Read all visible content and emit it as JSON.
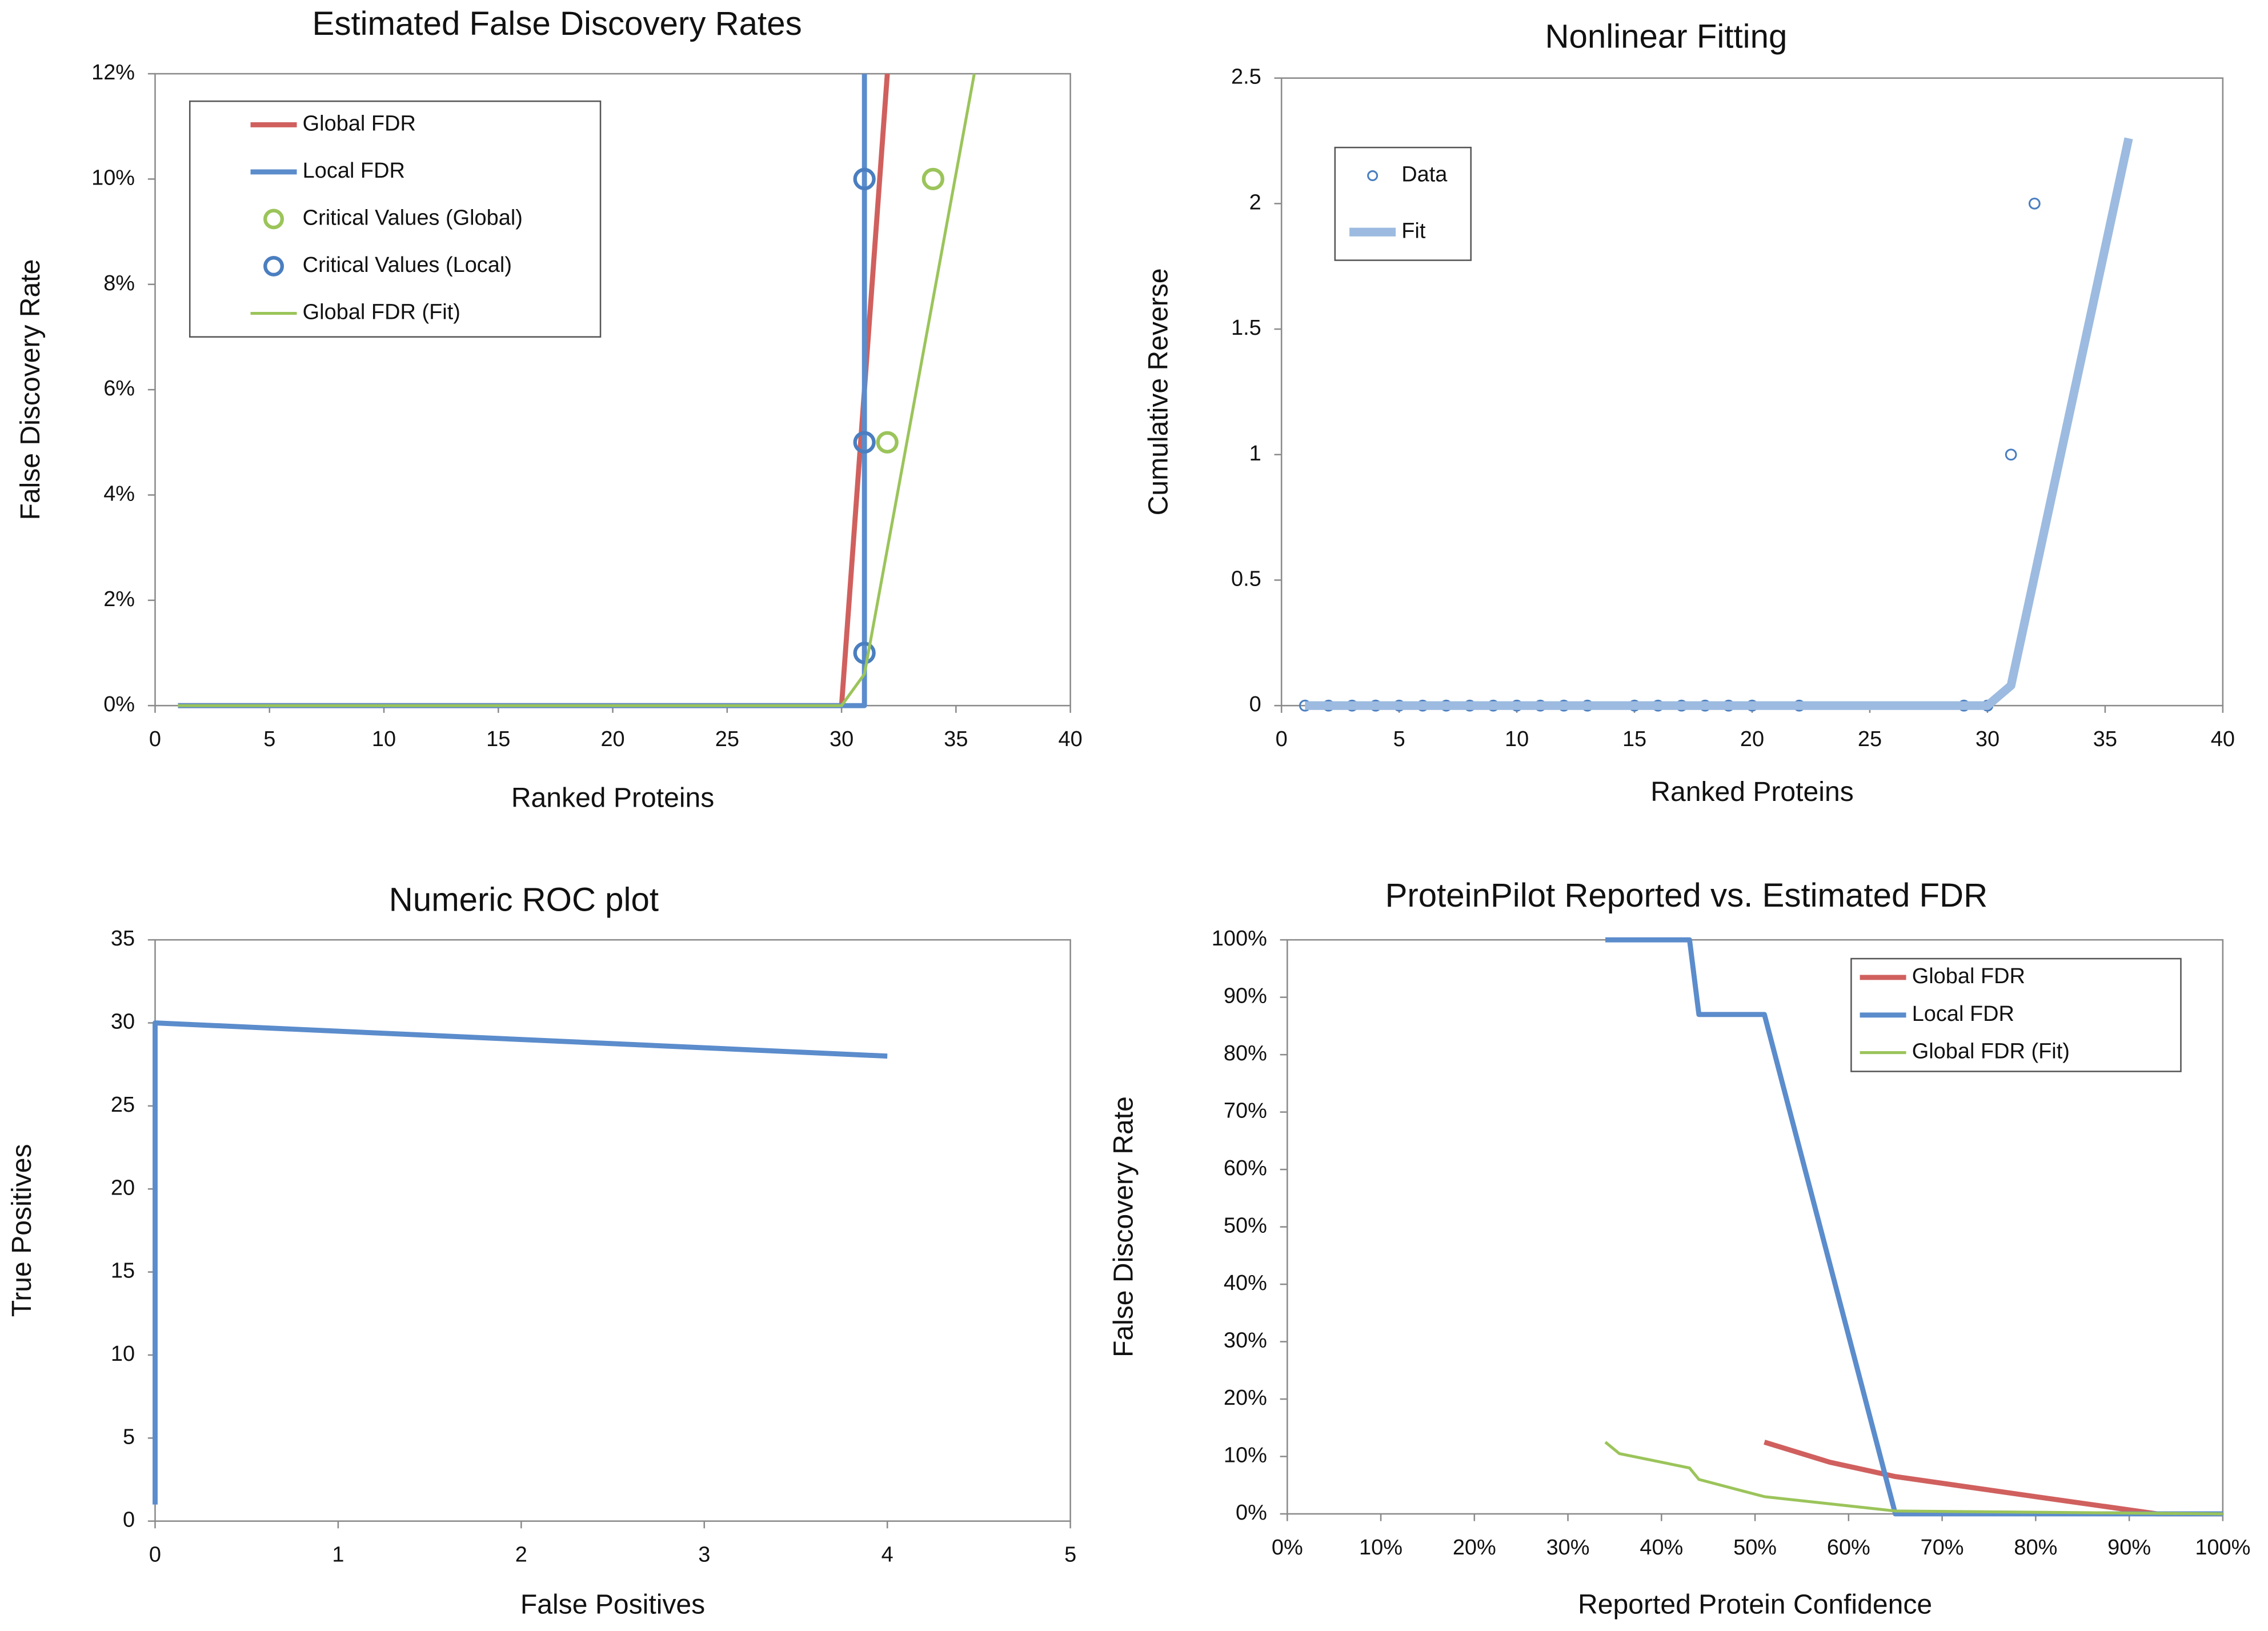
{
  "chart_data": [
    {
      "type": "line",
      "title": "Estimated False Discovery Rates",
      "x_label": "Ranked Proteins",
      "y_label": "False Discovery Rate",
      "xlim": [
        0,
        40
      ],
      "xticks": [
        0,
        5,
        10,
        15,
        20,
        25,
        30,
        35,
        40
      ],
      "ylim": [
        0,
        12
      ],
      "yticks": [
        {
          "value": 0,
          "label": "0%"
        },
        {
          "value": 2,
          "label": "2%"
        },
        {
          "value": 4,
          "label": "4%"
        },
        {
          "value": 6,
          "label": "6%"
        },
        {
          "value": 8,
          "label": "8%"
        },
        {
          "value": 10,
          "label": "10%"
        },
        {
          "value": 12,
          "label": "12%"
        }
      ],
      "legend": "upper left",
      "series": [
        {
          "name": "Global FDR",
          "color": "#d0605e",
          "kind": "line",
          "x": [
            1,
            30,
            32
          ],
          "values": [
            0,
            0,
            12
          ]
        },
        {
          "name": "Local FDR",
          "color": "#5b8ccc",
          "kind": "line",
          "x": [
            1,
            31,
            31
          ],
          "values": [
            0,
            0,
            12
          ]
        },
        {
          "name": "Critical Values (Global)",
          "color": "#9bc45a",
          "kind": "marker",
          "x": [
            32,
            34
          ],
          "values": [
            5,
            10
          ]
        },
        {
          "name": "Critical Values (Local)",
          "color": "#4a7ec0",
          "kind": "marker",
          "x": [
            31,
            31,
            31
          ],
          "values": [
            1,
            5,
            10
          ]
        },
        {
          "name": "Global FDR (Fit)",
          "color": "#9bc45a",
          "kind": "thin-line",
          "x": [
            1,
            30,
            31,
            35.8
          ],
          "values": [
            0,
            0,
            0.6,
            12
          ]
        }
      ]
    },
    {
      "type": "line",
      "title": "Nonlinear Fitting",
      "x_label": "Ranked Proteins",
      "y_label": "Cumulative Reverse",
      "xlim": [
        0,
        40
      ],
      "xticks": [
        0,
        5,
        10,
        15,
        20,
        25,
        30,
        35,
        40
      ],
      "ylim": [
        0,
        2.5
      ],
      "yticks": [
        0,
        0.5,
        1,
        1.5,
        2,
        2.5
      ],
      "legend": "upper left",
      "series": [
        {
          "name": "Data",
          "color": "#4a7ec0",
          "kind": "small-marker",
          "x": [
            1,
            2,
            3,
            4,
            5,
            6,
            7,
            8,
            9,
            10,
            11,
            12,
            13,
            15,
            16,
            17,
            18,
            19,
            20,
            22,
            29,
            30,
            31,
            32
          ],
          "values": [
            0,
            0,
            0,
            0,
            0,
            0,
            0,
            0,
            0,
            0,
            0,
            0,
            0,
            0,
            0,
            0,
            0,
            0,
            0,
            0,
            0,
            0,
            1,
            2
          ]
        },
        {
          "name": "Fit",
          "color": "#9dbbe0",
          "kind": "thick-line",
          "x": [
            1,
            30,
            31,
            36
          ],
          "values": [
            0,
            0,
            0.08,
            2.26
          ]
        }
      ]
    },
    {
      "type": "line",
      "title": "Numeric ROC plot",
      "x_label": "False Positives",
      "y_label": "True Positives",
      "xlim": [
        0,
        5
      ],
      "xticks": [
        0,
        1,
        2,
        3,
        4,
        5
      ],
      "ylim": [
        0,
        35
      ],
      "yticks": [
        0,
        5,
        10,
        15,
        20,
        25,
        30,
        35
      ],
      "series": [
        {
          "color": "#5b8ccc",
          "kind": "line",
          "x": [
            0,
            0,
            4
          ],
          "values": [
            1,
            30,
            28
          ]
        }
      ]
    },
    {
      "type": "line",
      "title": "ProteinPilot Reported vs. Estimated FDR",
      "x_label": "Reported Protein Confidence",
      "y_label": "False Discovery Rate",
      "xlim": [
        0,
        100
      ],
      "xticks": [
        {
          "value": 0,
          "label": "0%"
        },
        {
          "value": 10,
          "label": "10%"
        },
        {
          "value": 20,
          "label": "20%"
        },
        {
          "value": 30,
          "label": "30%"
        },
        {
          "value": 40,
          "label": "40%"
        },
        {
          "value": 50,
          "label": "50%"
        },
        {
          "value": 60,
          "label": "60%"
        },
        {
          "value": 70,
          "label": "70%"
        },
        {
          "value": 80,
          "label": "80%"
        },
        {
          "value": 90,
          "label": "90%"
        },
        {
          "value": 100,
          "label": "100%"
        }
      ],
      "ylim": [
        0,
        100
      ],
      "yticks": [
        {
          "value": 0,
          "label": "0%"
        },
        {
          "value": 10,
          "label": "10%"
        },
        {
          "value": 20,
          "label": "20%"
        },
        {
          "value": 30,
          "label": "30%"
        },
        {
          "value": 40,
          "label": "40%"
        },
        {
          "value": 50,
          "label": "50%"
        },
        {
          "value": 60,
          "label": "60%"
        },
        {
          "value": 70,
          "label": "70%"
        },
        {
          "value": 80,
          "label": "80%"
        },
        {
          "value": 90,
          "label": "90%"
        },
        {
          "value": 100,
          "label": "100%"
        }
      ],
      "legend": "upper right",
      "series": [
        {
          "name": "Global FDR",
          "color": "#d0605e",
          "kind": "line",
          "x": [
            51,
            58,
            65,
            80,
            93,
            100
          ],
          "values": [
            12.5,
            9,
            6.5,
            3,
            0,
            0
          ]
        },
        {
          "name": "Local FDR",
          "color": "#5b8ccc",
          "kind": "line",
          "x": [
            34,
            43,
            44,
            51,
            65,
            100
          ],
          "values": [
            100,
            100,
            87,
            87,
            0,
            0
          ]
        },
        {
          "name": "Global FDR (Fit)",
          "color": "#9bc45a",
          "kind": "thin-line",
          "x": [
            34,
            35.5,
            43,
            44,
            51,
            65,
            100
          ],
          "values": [
            12.5,
            10.5,
            8,
            6,
            3,
            0.5,
            0
          ]
        }
      ]
    }
  ]
}
